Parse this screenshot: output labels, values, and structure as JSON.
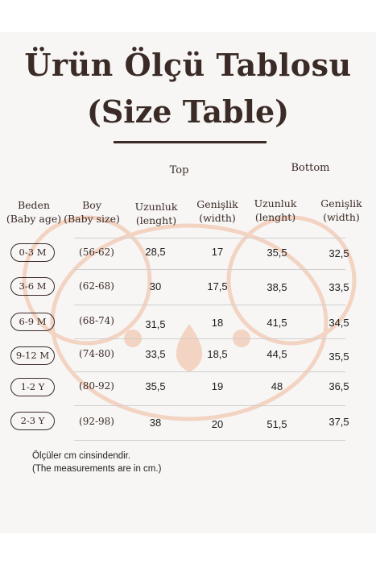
{
  "title_line1": "Ürün Ölçü Tablosu",
  "title_line2": "(Size Table)",
  "group_top": "Top",
  "group_bottom": "Bottom",
  "headers": {
    "beden": "Beden",
    "beden_en": "(Baby age)",
    "boy": "Boy",
    "boy_en": "(Baby size)",
    "top_uzunluk": "Uzunluk",
    "top_uzunluk_en": "(lenght)",
    "top_genislik": "Genişlik",
    "top_genislik_en": "(width)",
    "bottom_uzunluk": "Uzunluk",
    "bottom_uzunluk_en": "(lenght)",
    "bottom_genislik": "Genişlik",
    "bottom_genislik_en": "(width)"
  },
  "rows": [
    {
      "age": "0-3 M",
      "size": "(56-62)",
      "top_len": "28,5",
      "top_wid": "17",
      "bot_len": "35,5",
      "bot_wid": "32,5"
    },
    {
      "age": "3-6 M",
      "size": "(62-68)",
      "top_len": "30",
      "top_wid": "17,5",
      "bot_len": "38,5",
      "bot_wid": "33,5"
    },
    {
      "age": "6-9 M",
      "size": "(68-74)",
      "top_len": "31,5",
      "top_wid": "18",
      "bot_len": "41,5",
      "bot_wid": "34,5"
    },
    {
      "age": "9-12 M",
      "size": "(74-80)",
      "top_len": "33,5",
      "top_wid": "18,5",
      "bot_len": "44,5",
      "bot_wid": "35,5"
    },
    {
      "age": "1-2 Y",
      "size": "(80-92)",
      "top_len": "35,5",
      "top_wid": "19",
      "bot_len": "48",
      "bot_wid": "36,5"
    },
    {
      "age": "2-3 Y",
      "size": "(92-98)",
      "top_len": "38",
      "top_wid": "20",
      "bot_len": "51,5",
      "bot_wid": "37,5"
    }
  ],
  "note_tr": "Ölçüler cm cinsindendir.",
  "note_en": "(The measurements are in cm.)",
  "colors": {
    "text": "#3b2b26",
    "watermark": "#f3d3c2",
    "background": "#f7f6f5"
  }
}
